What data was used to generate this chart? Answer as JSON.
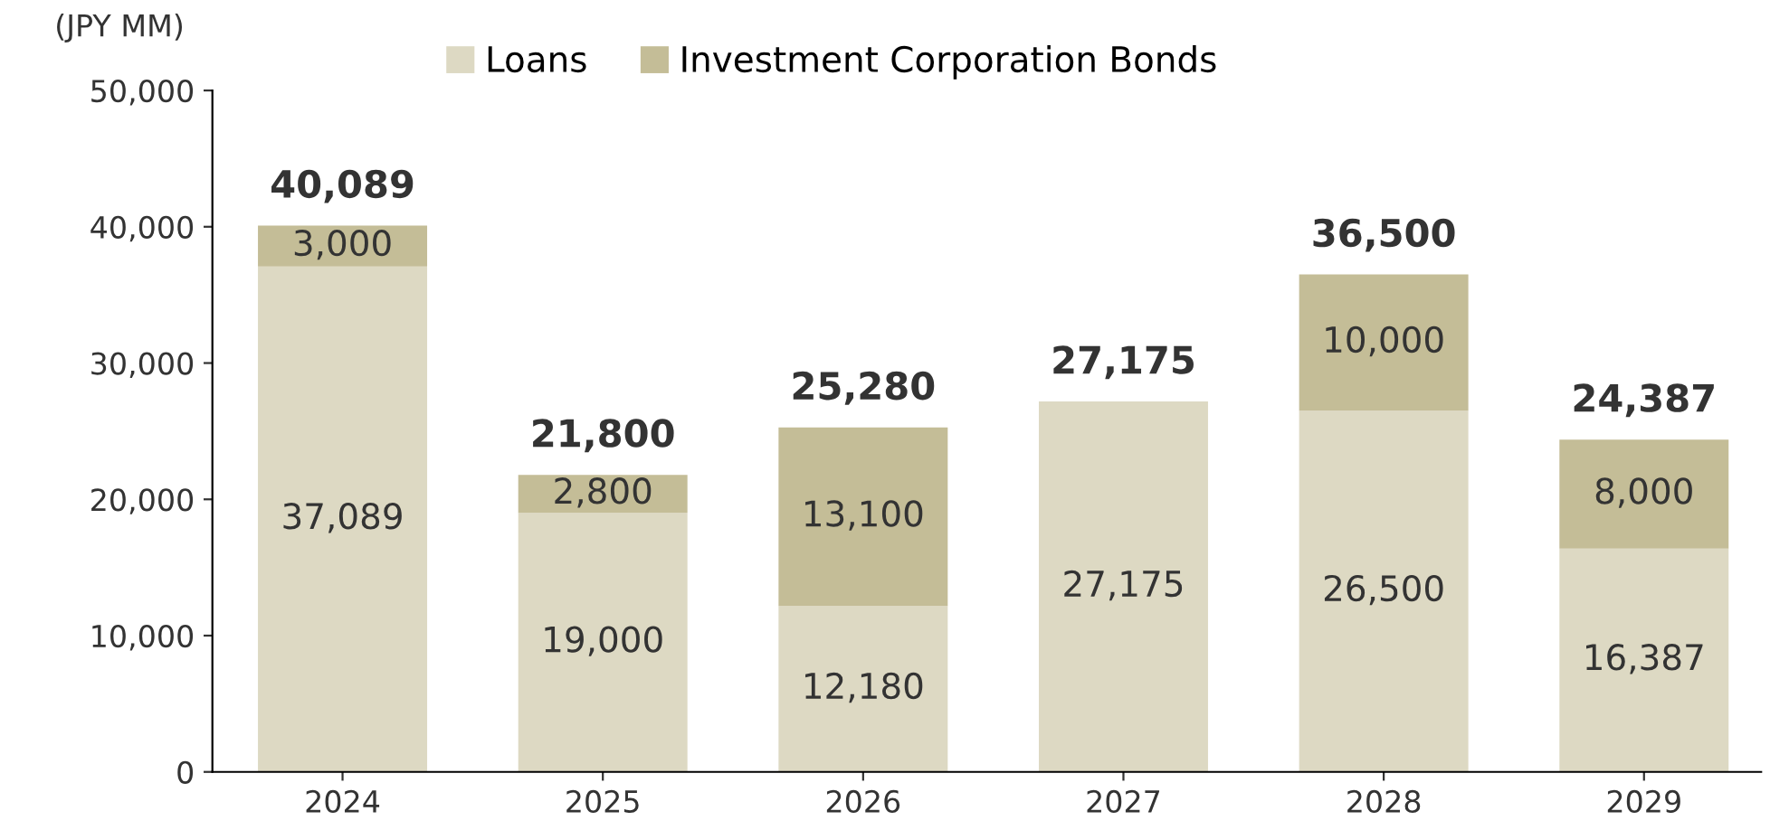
{
  "chart_data": {
    "type": "bar",
    "stacked": true,
    "ylabel": "(JPY MM)",
    "categories": [
      "2024",
      "2025",
      "2026",
      "2027",
      "2028",
      "2029"
    ],
    "series": [
      {
        "name": "Loans",
        "color": "#ddd9c3",
        "values": [
          37089,
          19000,
          12180,
          27175,
          26500,
          16387
        ],
        "value_labels": [
          "37,089",
          "19,000",
          "12,180",
          "27,175",
          "26,500",
          "16,387"
        ]
      },
      {
        "name": "Investment Corporation Bonds",
        "color": "#c4bd97",
        "values": [
          3000,
          2800,
          13100,
          null,
          10000,
          8000
        ],
        "value_labels": [
          "3,000",
          "2,800",
          "13,100",
          null,
          "10,000",
          "8,000"
        ]
      }
    ],
    "totals": [
      "40,089",
      "21,800",
      "25,280",
      "27,175",
      "36,500",
      "24,387"
    ],
    "ylim": [
      0,
      50000
    ],
    "yticks": [
      {
        "value": 0,
        "label": "0"
      },
      {
        "value": 10000,
        "label": "10,000"
      },
      {
        "value": 20000,
        "label": "20,000"
      },
      {
        "value": 30000,
        "label": "30,000"
      },
      {
        "value": 40000,
        "label": "40,000"
      },
      {
        "value": 50000,
        "label": "50,000"
      }
    ],
    "grid": false,
    "legend": "top"
  }
}
